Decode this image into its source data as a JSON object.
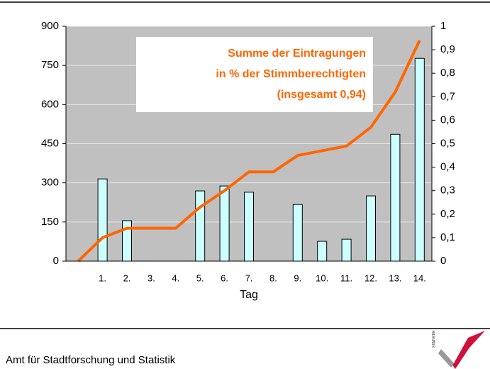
{
  "chart_data": {
    "type": "bar_line",
    "categories": [
      null,
      "1.",
      "2.",
      "3.",
      "4.",
      "5.",
      "6.",
      "7.",
      "8.",
      "9.",
      "10.",
      "11.",
      "12.",
      "13.",
      "14."
    ],
    "x_label": "Tag",
    "series": [
      {
        "type": "bar",
        "axis": "y",
        "color": "#ccffff",
        "values": [
          null,
          315,
          155,
          0,
          0,
          269,
          288,
          264,
          0,
          217,
          76,
          84,
          250,
          486,
          777
        ]
      },
      {
        "type": "line",
        "axis": "y2",
        "color": "#ff6600",
        "values": [
          0,
          0.1,
          0.14,
          0.14,
          0.14,
          0.23,
          0.3,
          0.38,
          0.38,
          0.45,
          0.47,
          0.49,
          0.57,
          0.72,
          0.94
        ]
      }
    ],
    "ylim": [
      0,
      900
    ],
    "yticks": [
      0,
      150,
      300,
      450,
      600,
      750,
      900
    ],
    "y2lim": [
      0,
      1
    ],
    "y2ticks": [
      0,
      {
        "value": 0.1,
        "label": "0,1"
      },
      {
        "value": 0.2,
        "label": "0,2"
      },
      {
        "value": 0.3,
        "label": "0,3"
      },
      {
        "value": 0.4,
        "label": "0,4"
      },
      {
        "value": 0.5,
        "label": "0,5"
      },
      {
        "value": 0.6,
        "label": "0,6"
      },
      {
        "value": 0.7,
        "label": "0,7"
      },
      {
        "value": 0.8,
        "label": "0,8"
      },
      {
        "value": 0.9,
        "label": "0,9"
      },
      1
    ],
    "grid": true,
    "plot_background": "#c0c0c0",
    "annotation": [
      "Summe der Eintragungen",
      "in % der Stimmberechtigten",
      "(insgesamt 0,94)"
    ]
  },
  "footer": {
    "text": "Amt für Stadtforschung und Statistik",
    "logo_text": "STATISTIK"
  }
}
